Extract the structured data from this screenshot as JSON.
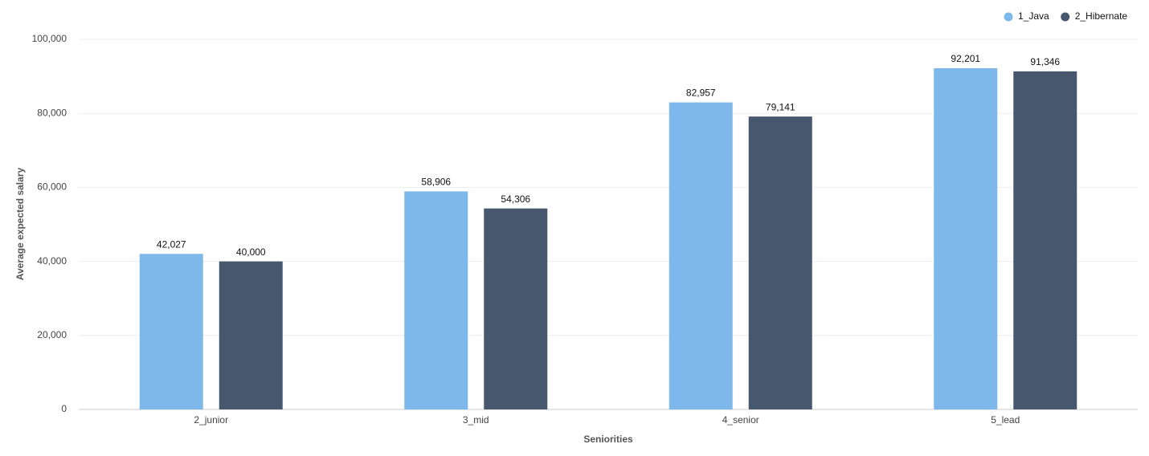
{
  "chart_data": {
    "type": "bar",
    "x_label": "Seniorities",
    "y_label": "Average expected salary",
    "categories": [
      "2_junior",
      "3_mid",
      "4_senior",
      "5_lead"
    ],
    "series": [
      {
        "name": "1_Java",
        "color": "#7eb8ea",
        "values": [
          42027,
          58906,
          82957,
          92201
        ],
        "value_labels": [
          "42,027",
          "58,906",
          "82,957",
          "92,201"
        ]
      },
      {
        "name": "2_Hibernate",
        "color": "#47586e",
        "values": [
          40000,
          54306,
          79141,
          91346
        ],
        "value_labels": [
          "40,000",
          "54,306",
          "79,141",
          "91,346"
        ]
      }
    ],
    "ylim": [
      0,
      100000
    ],
    "yticks": [
      0,
      {
        "value": 20000,
        "label": "20,000"
      },
      {
        "value": 40000,
        "label": "40,000"
      },
      {
        "value": 60000,
        "label": "60,000"
      },
      {
        "value": 80000,
        "label": "80,000"
      },
      {
        "value": 100000,
        "label": "100,000"
      }
    ],
    "grid": true,
    "legend": "top-right"
  }
}
